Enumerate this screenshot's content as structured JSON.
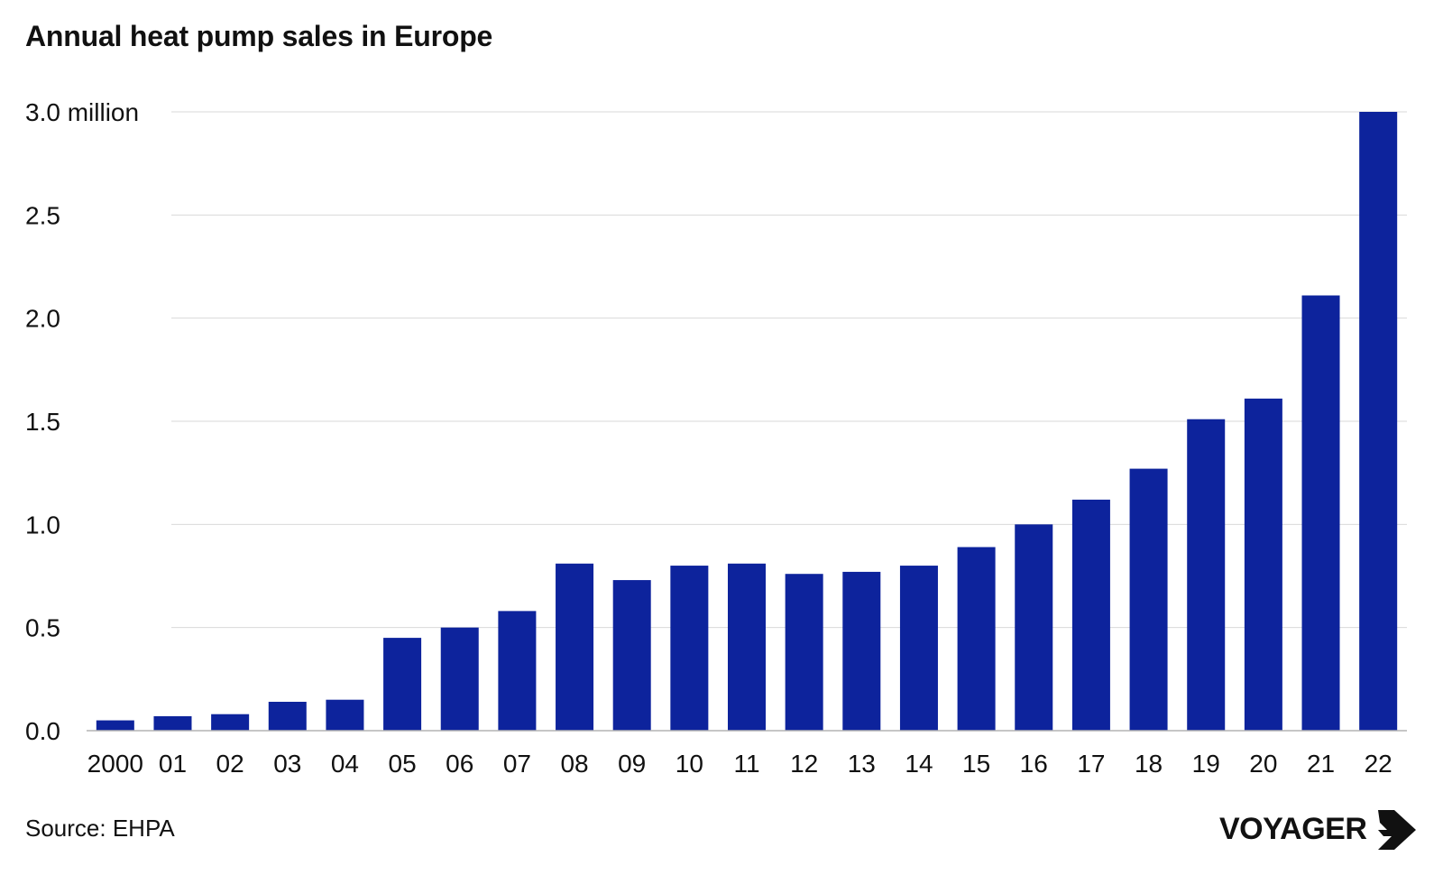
{
  "title": "Annual heat pump sales in Europe",
  "source": "Source: EHPA",
  "logo_text": "VOYAGER",
  "colors": {
    "bar": "#0d239c",
    "grid": "#d9d9d9",
    "axis": "#b3b3b3",
    "text": "#111111"
  },
  "chart_data": {
    "type": "bar",
    "title": "Annual heat pump sales in Europe",
    "xlabel": "",
    "ylabel": "",
    "categories": [
      "2000",
      "01",
      "02",
      "03",
      "04",
      "05",
      "06",
      "07",
      "08",
      "09",
      "10",
      "11",
      "12",
      "13",
      "14",
      "15",
      "16",
      "17",
      "18",
      "19",
      "20",
      "21",
      "22"
    ],
    "values": [
      0.05,
      0.07,
      0.08,
      0.14,
      0.15,
      0.45,
      0.5,
      0.58,
      0.81,
      0.73,
      0.8,
      0.81,
      0.76,
      0.77,
      0.8,
      0.89,
      1.0,
      1.12,
      1.27,
      1.51,
      1.61,
      2.11,
      3.0
    ],
    "ylim": [
      0,
      3.0
    ],
    "yticks": [
      0,
      0.5,
      1.0,
      1.5,
      2.0,
      2.5,
      3.0
    ],
    "ytick_labels": [
      "0.0",
      "0.5",
      "1.0",
      "1.5",
      "2.0",
      "2.5",
      "3.0 million"
    ],
    "grid": true,
    "legend": "none"
  }
}
